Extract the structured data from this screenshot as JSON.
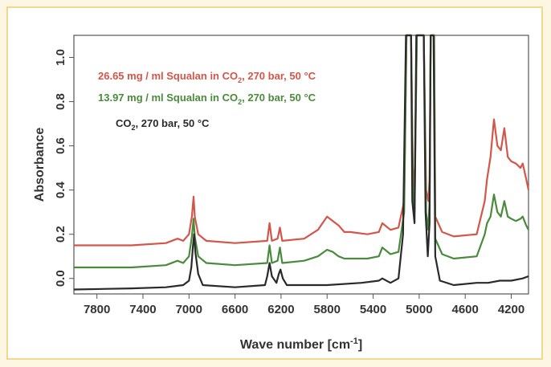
{
  "chart_data": {
    "type": "line",
    "xlabel": "Wave number [cm",
    "xlabel_sup": "-1",
    "xlabel_close": "]",
    "ylabel": "Absorbance",
    "xlim": [
      8000,
      4050
    ],
    "ylim": [
      -0.07,
      1.1
    ],
    "x_reversed": true,
    "grid": false,
    "legend_position": "top-left",
    "x_ticks": [
      7800,
      7400,
      7000,
      6600,
      6200,
      5800,
      5400,
      5000,
      4600,
      4200
    ],
    "y_ticks": [
      0.0,
      0.2,
      0.4,
      0.6,
      0.8,
      1.0
    ],
    "y_tick_labels": [
      "0.0",
      "0.2",
      "0.4",
      "0.6",
      "0.8",
      "1.0"
    ],
    "series": [
      {
        "name": "26.65 mg / ml Squalan in CO2, 270 bar, 50 °C",
        "legend_parts": [
          "26.65 mg / ml Squalan in CO",
          "2",
          ", 270 bar, 50 °C"
        ],
        "color": "#d4554a",
        "points": [
          [
            8000,
            0.15
          ],
          [
            7500,
            0.15
          ],
          [
            7200,
            0.16
          ],
          [
            7100,
            0.18
          ],
          [
            7050,
            0.17
          ],
          [
            7000,
            0.2
          ],
          [
            6975,
            0.28
          ],
          [
            6960,
            0.37
          ],
          [
            6950,
            0.28
          ],
          [
            6920,
            0.2
          ],
          [
            6850,
            0.17
          ],
          [
            6600,
            0.16
          ],
          [
            6320,
            0.17
          ],
          [
            6300,
            0.25
          ],
          [
            6280,
            0.17
          ],
          [
            6230,
            0.18
          ],
          [
            6210,
            0.23
          ],
          [
            6190,
            0.17
          ],
          [
            6000,
            0.18
          ],
          [
            5880,
            0.22
          ],
          [
            5800,
            0.28
          ],
          [
            5750,
            0.26
          ],
          [
            5700,
            0.24
          ],
          [
            5650,
            0.21
          ],
          [
            5600,
            0.21
          ],
          [
            5450,
            0.2
          ],
          [
            5350,
            0.21
          ],
          [
            5320,
            0.25
          ],
          [
            5250,
            0.22
          ],
          [
            5180,
            0.23
          ],
          [
            5130,
            0.35
          ],
          [
            5110,
            1.1
          ],
          [
            5070,
            1.1
          ],
          [
            5055,
            0.5
          ],
          [
            5040,
            0.4
          ],
          [
            5020,
            1.1
          ],
          [
            4960,
            1.1
          ],
          [
            4940,
            0.4
          ],
          [
            4920,
            0.35
          ],
          [
            4910,
            0.45
          ],
          [
            4900,
            1.1
          ],
          [
            4870,
            1.1
          ],
          [
            4860,
            0.28
          ],
          [
            4800,
            0.21
          ],
          [
            4700,
            0.19
          ],
          [
            4500,
            0.2
          ],
          [
            4430,
            0.35
          ],
          [
            4410,
            0.45
          ],
          [
            4380,
            0.55
          ],
          [
            4350,
            0.72
          ],
          [
            4320,
            0.6
          ],
          [
            4290,
            0.58
          ],
          [
            4260,
            0.68
          ],
          [
            4230,
            0.55
          ],
          [
            4200,
            0.53
          ],
          [
            4160,
            0.52
          ],
          [
            4120,
            0.5
          ],
          [
            4100,
            0.52
          ],
          [
            4070,
            0.45
          ],
          [
            4050,
            0.4
          ]
        ]
      },
      {
        "name": "13.97 mg / ml Squalan in CO2, 270 bar, 50 °C",
        "legend_parts": [
          "13.97 mg / ml Squalan in CO",
          "2",
          ", 270 bar, 50 °C"
        ],
        "color": "#4a8a3c",
        "points": [
          [
            8000,
            0.05
          ],
          [
            7500,
            0.05
          ],
          [
            7200,
            0.06
          ],
          [
            7100,
            0.08
          ],
          [
            7050,
            0.07
          ],
          [
            7000,
            0.1
          ],
          [
            6975,
            0.19
          ],
          [
            6960,
            0.27
          ],
          [
            6950,
            0.19
          ],
          [
            6920,
            0.1
          ],
          [
            6850,
            0.07
          ],
          [
            6600,
            0.06
          ],
          [
            6320,
            0.07
          ],
          [
            6300,
            0.15
          ],
          [
            6280,
            0.07
          ],
          [
            6230,
            0.08
          ],
          [
            6210,
            0.14
          ],
          [
            6190,
            0.07
          ],
          [
            6000,
            0.08
          ],
          [
            5880,
            0.1
          ],
          [
            5800,
            0.13
          ],
          [
            5750,
            0.12
          ],
          [
            5700,
            0.1
          ],
          [
            5650,
            0.09
          ],
          [
            5600,
            0.09
          ],
          [
            5450,
            0.09
          ],
          [
            5350,
            0.1
          ],
          [
            5320,
            0.14
          ],
          [
            5250,
            0.11
          ],
          [
            5180,
            0.12
          ],
          [
            5130,
            0.3
          ],
          [
            5110,
            1.1
          ],
          [
            5070,
            1.1
          ],
          [
            5055,
            0.4
          ],
          [
            5040,
            0.3
          ],
          [
            5020,
            1.1
          ],
          [
            4960,
            1.1
          ],
          [
            4940,
            0.3
          ],
          [
            4920,
            0.22
          ],
          [
            4910,
            0.35
          ],
          [
            4900,
            1.1
          ],
          [
            4870,
            1.1
          ],
          [
            4860,
            0.18
          ],
          [
            4800,
            0.11
          ],
          [
            4700,
            0.09
          ],
          [
            4500,
            0.1
          ],
          [
            4430,
            0.2
          ],
          [
            4410,
            0.25
          ],
          [
            4380,
            0.28
          ],
          [
            4350,
            0.38
          ],
          [
            4320,
            0.3
          ],
          [
            4290,
            0.28
          ],
          [
            4260,
            0.35
          ],
          [
            4230,
            0.28
          ],
          [
            4200,
            0.27
          ],
          [
            4160,
            0.26
          ],
          [
            4120,
            0.27
          ],
          [
            4100,
            0.28
          ],
          [
            4070,
            0.24
          ],
          [
            4050,
            0.22
          ]
        ]
      },
      {
        "name": "CO2, 270 bar, 50 °C",
        "legend_parts": [
          "CO",
          "2",
          ", 270 bar, 50 °C"
        ],
        "color": "#2a2a2a",
        "points": [
          [
            8000,
            -0.05
          ],
          [
            7500,
            -0.045
          ],
          [
            7200,
            -0.04
          ],
          [
            7050,
            -0.03
          ],
          [
            7000,
            -0.01
          ],
          [
            6980,
            0.05
          ],
          [
            6965,
            0.15
          ],
          [
            6955,
            0.2
          ],
          [
            6945,
            0.12
          ],
          [
            6920,
            0.02
          ],
          [
            6880,
            -0.03
          ],
          [
            6600,
            -0.04
          ],
          [
            6340,
            -0.03
          ],
          [
            6320,
            0.01
          ],
          [
            6300,
            0.07
          ],
          [
            6280,
            0.01
          ],
          [
            6240,
            -0.02
          ],
          [
            6220,
            0.02
          ],
          [
            6205,
            0.04
          ],
          [
            6185,
            0.0
          ],
          [
            6150,
            -0.03
          ],
          [
            6000,
            -0.03
          ],
          [
            5800,
            -0.03
          ],
          [
            5500,
            -0.02
          ],
          [
            5350,
            -0.01
          ],
          [
            5320,
            0.0
          ],
          [
            5250,
            -0.02
          ],
          [
            5180,
            0.0
          ],
          [
            5140,
            0.2
          ],
          [
            5115,
            1.1
          ],
          [
            5070,
            1.1
          ],
          [
            5060,
            0.35
          ],
          [
            5040,
            0.25
          ],
          [
            5025,
            1.1
          ],
          [
            4960,
            1.1
          ],
          [
            4945,
            0.3
          ],
          [
            4925,
            0.1
          ],
          [
            4910,
            0.25
          ],
          [
            4900,
            1.1
          ],
          [
            4875,
            1.1
          ],
          [
            4860,
            0.1
          ],
          [
            4820,
            -0.01
          ],
          [
            4700,
            -0.03
          ],
          [
            4500,
            -0.02
          ],
          [
            4400,
            -0.02
          ],
          [
            4300,
            -0.01
          ],
          [
            4200,
            -0.01
          ],
          [
            4100,
            0.0
          ],
          [
            4050,
            0.01
          ]
        ]
      }
    ]
  }
}
